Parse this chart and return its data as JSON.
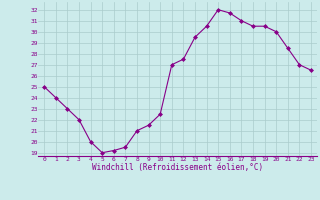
{
  "x": [
    0,
    1,
    2,
    3,
    4,
    5,
    6,
    7,
    8,
    9,
    10,
    11,
    12,
    13,
    14,
    15,
    16,
    17,
    18,
    19,
    20,
    21,
    22,
    23
  ],
  "y": [
    25,
    24,
    23,
    22,
    20,
    19,
    19.2,
    19.5,
    21,
    21.5,
    22.5,
    27,
    27.5,
    29.5,
    30.5,
    32,
    31.7,
    31,
    30.5,
    30.5,
    30,
    28.5,
    27,
    26.5
  ],
  "line_color": "#880088",
  "marker": "D",
  "marker_size": 2,
  "bg_color": "#ccebeb",
  "grid_color": "#aacccc",
  "xlabel": "Windchill (Refroidissement éolien,°C)",
  "xlabel_color": "#880088",
  "tick_color": "#880088",
  "yticks": [
    19,
    20,
    21,
    22,
    23,
    24,
    25,
    26,
    27,
    28,
    29,
    30,
    31,
    32
  ],
  "xticks": [
    0,
    1,
    2,
    3,
    4,
    5,
    6,
    7,
    8,
    9,
    10,
    11,
    12,
    13,
    14,
    15,
    16,
    17,
    18,
    19,
    20,
    21,
    22,
    23
  ],
  "ylim": [
    18.7,
    32.7
  ],
  "xlim": [
    -0.5,
    23.5
  ]
}
